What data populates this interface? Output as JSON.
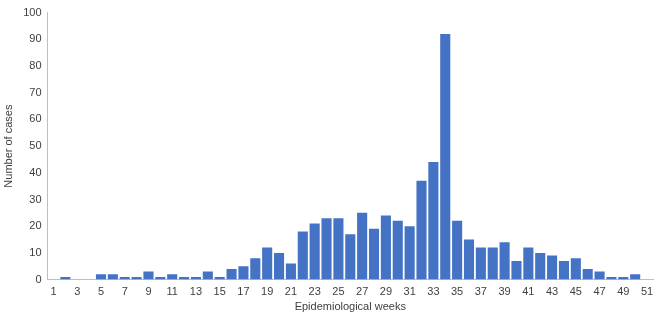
{
  "chart_data": {
    "type": "bar",
    "categories": [
      "1",
      null,
      "3",
      null,
      "5",
      null,
      "7",
      null,
      "9",
      null,
      "11",
      null,
      "13",
      null,
      "15",
      null,
      "17",
      null,
      "19",
      null,
      "21",
      null,
      "23",
      null,
      "25",
      null,
      "27",
      null,
      "29",
      null,
      "31",
      null,
      "33",
      null,
      "35",
      null,
      "37",
      null,
      "39",
      null,
      "41",
      null,
      "43",
      null,
      "45",
      null,
      "47",
      null,
      "49",
      null,
      "51"
    ],
    "values": [
      0,
      1,
      0,
      0,
      2,
      2,
      1,
      1,
      3,
      1,
      2,
      1,
      1,
      3,
      1,
      4,
      5,
      8,
      12,
      10,
      6,
      18,
      21,
      23,
      23,
      17,
      25,
      19,
      24,
      22,
      20,
      37,
      44,
      92,
      22,
      15,
      12,
      12,
      14,
      7,
      12,
      10,
      9,
      7,
      8,
      4,
      3,
      1,
      1,
      2,
      0
    ],
    "color": "#4472c4",
    "x_label": "Epidemiological weeks",
    "y_label": "Number of cases",
    "ylim": [
      0,
      100
    ],
    "yticks": [
      0,
      10,
      20,
      30,
      40,
      50,
      60,
      70,
      80,
      90,
      100
    ],
    "grid": false
  }
}
